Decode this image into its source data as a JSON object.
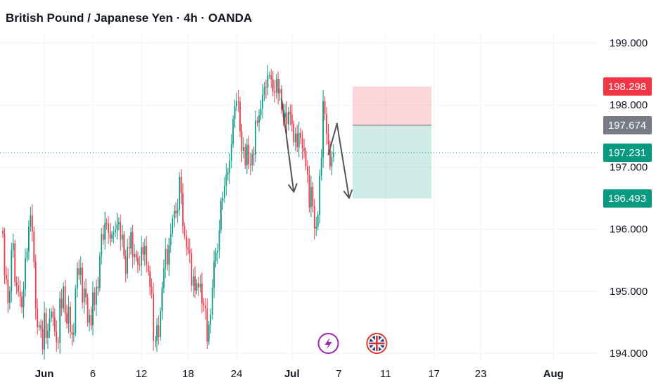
{
  "chart_data": {
    "type": "candlestick",
    "title": "British Pound / Japanese Yen · 4h · OANDA",
    "y_range": [
      193.9,
      199.6
    ],
    "y_ticks": [
      {
        "value": 199.0,
        "label": "199.000"
      },
      {
        "value": 198.0,
        "label": "198.000"
      },
      {
        "value": 197.0,
        "label": "197.000"
      },
      {
        "value": 196.0,
        "label": "196.000"
      },
      {
        "value": 195.0,
        "label": "195.000"
      },
      {
        "value": 194.0,
        "label": "194.000"
      }
    ],
    "x_ticks": [
      {
        "label": "Jun",
        "bold": true,
        "bar_index": 24
      },
      {
        "label": "6",
        "bold": false,
        "bar_index": 52
      },
      {
        "label": "12",
        "bold": false,
        "bar_index": 80
      },
      {
        "label": "18",
        "bold": false,
        "bar_index": 107
      },
      {
        "label": "24",
        "bold": false,
        "bar_index": 135
      },
      {
        "label": "Jul",
        "bold": true,
        "bar_index": 167
      },
      {
        "label": "7",
        "bold": false,
        "bar_index": 194
      },
      {
        "label": "11",
        "bold": false,
        "bar_index": 221
      },
      {
        "label": "17",
        "bold": false,
        "bar_index": 249
      },
      {
        "label": "23",
        "bold": false,
        "bar_index": 276
      },
      {
        "label": "Aug",
        "bold": true,
        "bar_index": 318
      }
    ],
    "bar_count_range": [
      0,
      330
    ],
    "price_series": [
      195.92,
      195.26,
      195.19,
      194.81,
      195.0,
      195.66,
      195.77,
      195.14,
      195.09,
      194.99,
      194.91,
      194.74,
      195.03,
      195.53,
      195.64,
      196.04,
      196.22,
      195.96,
      195.47,
      194.72,
      194.42,
      194.45,
      194.39,
      194.06,
      194.65,
      194.25,
      194.36,
      194.56,
      194.67,
      194.58,
      194.35,
      194.18,
      194.17,
      194.88,
      194.72,
      195.08,
      194.64,
      194.48,
      194.75,
      194.34,
      194.3,
      194.33,
      195.04,
      195.37,
      195.26,
      195.38,
      194.82,
      195.04,
      194.9,
      194.49,
      194.61,
      194.45,
      194.98,
      194.78,
      195.07,
      195.05,
      195.57,
      195.92,
      195.83,
      196.1,
      196.09,
      195.94,
      195.85,
      195.91,
      195.95,
      195.99,
      196.08,
      196.11,
      195.83,
      195.91,
      195.57,
      195.28,
      195.71,
      195.69,
      195.95,
      195.55,
      195.6,
      195.54,
      195.43,
      195.41,
      195.71,
      195.59,
      195.73,
      195.42,
      195.31,
      195.07,
      194.96,
      194.2,
      194.2,
      194.45,
      194.26,
      194.68,
      195.05,
      195.37,
      195.68,
      195.43,
      195.74,
      195.93,
      196.17,
      196.29,
      196.26,
      196.31,
      196.84,
      196.58,
      196.05,
      195.89,
      195.71,
      195.67,
      195.61,
      195.09,
      195.24,
      195.01,
      195.13,
      195.06,
      195.12,
      194.81,
      194.77,
      194.72,
      194.19,
      194.46,
      194.62,
      195.05,
      195.48,
      195.62,
      195.65,
      195.99,
      196.45,
      196.5,
      196.7,
      196.88,
      196.91,
      197.1,
      197.37,
      197.77,
      197.98,
      198.06,
      198.05,
      197.58,
      197.26,
      197.32,
      197.03,
      197.36,
      197.05,
      197.03,
      197.21,
      197.2,
      197.75,
      197.71,
      197.83,
      197.94,
      198.16,
      198.29,
      198.28,
      198.48,
      198.48,
      198.41,
      198.22,
      198.2,
      198.42,
      198.19,
      198.26,
      197.92,
      197.8,
      197.88,
      197.69,
      197.89,
      197.85,
      197.69,
      197.4,
      197.54,
      197.32,
      197.55,
      197.47,
      197.3,
      197.26,
      197.01,
      196.88,
      196.35,
      196.68,
      196.37,
      196.01,
      196.04,
      196.23,
      196.86,
      197.15,
      198.06,
      197.85,
      197.54,
      197.37,
      197.01,
      197.16,
      197.23
    ],
    "annotations": {
      "stop_zone": {
        "from": 197.674,
        "to": 198.298
      },
      "target_zone": {
        "from": 196.493,
        "to": 197.674
      },
      "current_price_line": 197.231,
      "arrow_1": {
        "from": {
          "bar": 161,
          "value": 198.1
        },
        "to": {
          "bar": 168,
          "value": 196.6
        }
      },
      "arrow_2_up": {
        "from": {
          "bar": 188,
          "value": 197.2
        },
        "to": {
          "bar": 193,
          "value": 197.7
        }
      },
      "arrow_2_down": {
        "from": {
          "bar": 193,
          "value": 197.7
        },
        "to": {
          "bar": 200,
          "value": 196.5
        }
      }
    },
    "price_badges": [
      {
        "value": 198.298,
        "label": "198.298",
        "color": "#f23645"
      },
      {
        "value": 197.674,
        "label": "197.674",
        "color": "#787b86"
      },
      {
        "value": 197.231,
        "label": "197.231",
        "color": "#089981"
      },
      {
        "value": 196.493,
        "label": "196.493",
        "color": "#089981"
      }
    ],
    "event_icons": [
      {
        "name": "lightning-icon",
        "bar_index": 188
      },
      {
        "name": "uk-flag-icon",
        "bar_index": 216
      }
    ],
    "colors": {
      "up": "#089981",
      "down": "#f23645",
      "grid": "#f0f3fa",
      "stop_fill": "rgba(242,54,69,0.2)",
      "target_fill": "rgba(8,153,129,0.2)",
      "arrow": "#555555",
      "current_line": "#089981",
      "lightning": "#9c27b0",
      "flag_ring": "#e53935"
    }
  }
}
